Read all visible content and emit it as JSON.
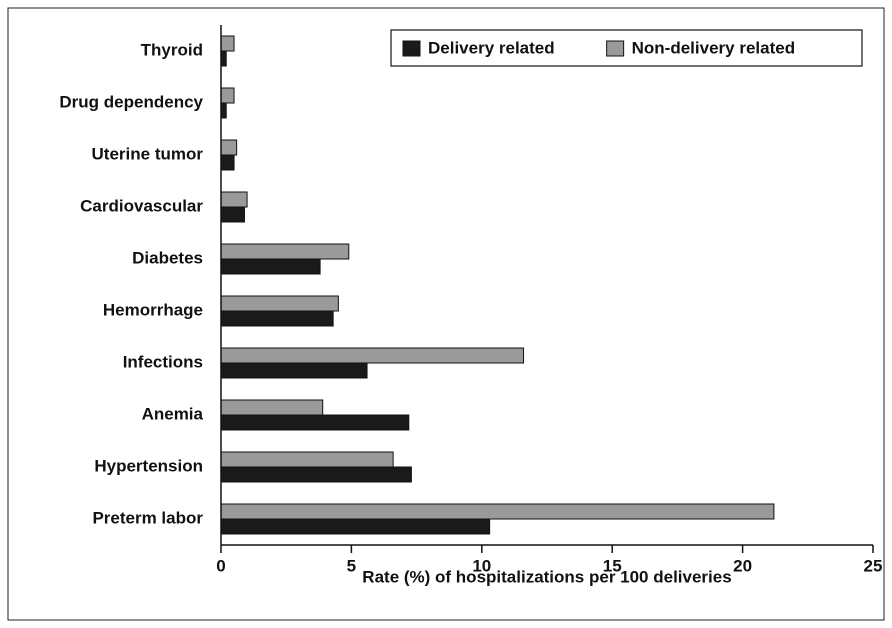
{
  "chart_data": {
    "type": "barh",
    "xlabel": "Rate (%) of hospitalizations per 100 deliveries",
    "categories": [
      "Preterm labor",
      "Hypertension",
      "Anemia",
      "Infections",
      "Hemorrhage",
      "Diabetes",
      "Cardiovascular",
      "Uterine tumor",
      "Drug dependency",
      "Thyroid"
    ],
    "series": [
      {
        "name": "Delivery related",
        "color": "#1a1a1a",
        "values": [
          10.3,
          7.3,
          7.2,
          5.6,
          4.3,
          3.8,
          0.9,
          0.5,
          0.2,
          0.2
        ]
      },
      {
        "name": "Non-delivery related",
        "color": "#9a9a9a",
        "values": [
          21.2,
          6.6,
          3.9,
          11.6,
          4.5,
          4.9,
          1.0,
          0.6,
          0.5,
          0.5
        ]
      }
    ],
    "xlim": [
      0,
      25
    ],
    "xticks": [
      0,
      5,
      10,
      15,
      20,
      25
    ],
    "legend": "top-right"
  }
}
